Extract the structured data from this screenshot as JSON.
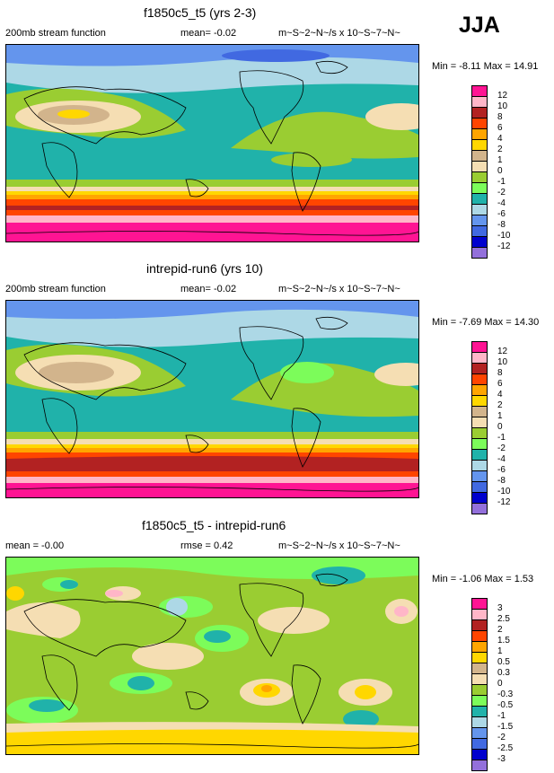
{
  "season": "JJA",
  "colors": {
    "c12": "#ff1493",
    "c10": "#ffb6c8",
    "c8": "#b22222",
    "c6": "#ff4500",
    "c4": "#ffa500",
    "c2": "#ffd700",
    "c1": "#d2b48c",
    "c0": "#f5deb3",
    "cm1": "#9acd32",
    "cm2": "#7cfc5a",
    "cm4": "#20b2aa",
    "cm6": "#add8e6",
    "cm8": "#6495ed",
    "cm10": "#4169e1",
    "cm12": "#0000cd",
    "cm14": "#9370db"
  },
  "panels": [
    {
      "title": "f1850c5_t5 (yrs 2-3)",
      "left": "200mb stream function",
      "middle": "mean=  -0.02",
      "right": "m~S~2~N~/s x 10~S~7~N~",
      "minmax": "Min = -8.11 Max = 14.91",
      "legend": [
        "12",
        "10",
        "8",
        "6",
        "4",
        "2",
        "1",
        "0",
        "-1",
        "-2",
        "-4",
        "-6",
        "-8",
        "-10",
        "-12"
      ]
    },
    {
      "title": "intrepid-run6 (yrs 10)",
      "left": "200mb stream function",
      "middle": "mean=  -0.02",
      "right": "m~S~2~N~/s x 10~S~7~N~",
      "minmax": "Min = -7.69 Max = 14.30",
      "legend": [
        "12",
        "10",
        "8",
        "6",
        "4",
        "2",
        "1",
        "0",
        "-1",
        "-2",
        "-4",
        "-6",
        "-8",
        "-10",
        "-12"
      ]
    },
    {
      "title": "f1850c5_t5 - intrepid-run6",
      "left": "mean =  -0.00",
      "middle": "rmse =  0.42",
      "right": "m~S~2~N~/s x 10~S~7~N~",
      "minmax": "Min = -1.06 Max =  1.53",
      "legend": [
        "3",
        "2.5",
        "2",
        "1.5",
        "1",
        "0.5",
        "0.3",
        "0",
        "-0.3",
        "-0.5",
        "-1",
        "-1.5",
        "-2",
        "-2.5",
        "-3"
      ]
    }
  ]
}
